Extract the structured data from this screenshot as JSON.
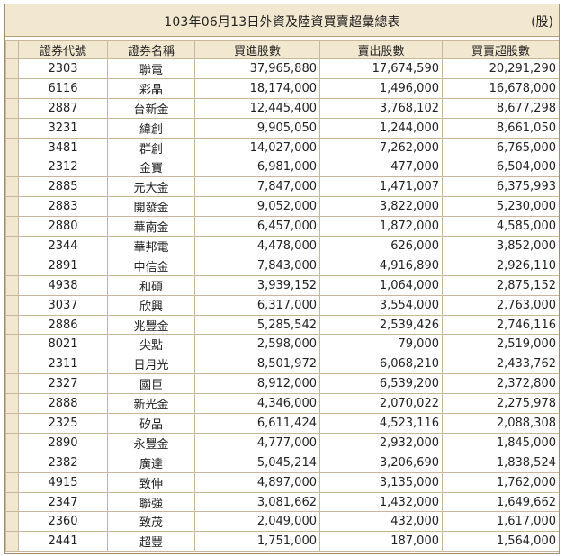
{
  "title": "103年06月13日外資及陸資買賣超彙總表",
  "unit": "(股)",
  "headers": [
    "證券代號",
    "證券名稱",
    "買進股數",
    "賣出股數",
    "買賣超股數"
  ],
  "rows": [
    {
      "code": "2303",
      "name": "聯電",
      "buy": "37,965,880",
      "sell": "17,674,590",
      "net": "20,291,290"
    },
    {
      "code": "6116",
      "name": "彩晶",
      "buy": "18,174,000",
      "sell": "1,496,000",
      "net": "16,678,000"
    },
    {
      "code": "2887",
      "name": "台新金",
      "buy": "12,445,400",
      "sell": "3,768,102",
      "net": "8,677,298"
    },
    {
      "code": "3231",
      "name": "緯創",
      "buy": "9,905,050",
      "sell": "1,244,000",
      "net": "8,661,050"
    },
    {
      "code": "3481",
      "name": "群創",
      "buy": "14,027,000",
      "sell": "7,262,000",
      "net": "6,765,000"
    },
    {
      "code": "2312",
      "name": "金寶",
      "buy": "6,981,000",
      "sell": "477,000",
      "net": "6,504,000"
    },
    {
      "code": "2885",
      "name": "元大金",
      "buy": "7,847,000",
      "sell": "1,471,007",
      "net": "6,375,993"
    },
    {
      "code": "2883",
      "name": "開發金",
      "buy": "9,052,000",
      "sell": "3,822,000",
      "net": "5,230,000"
    },
    {
      "code": "2880",
      "name": "華南金",
      "buy": "6,457,000",
      "sell": "1,872,000",
      "net": "4,585,000"
    },
    {
      "code": "2344",
      "name": "華邦電",
      "buy": "4,478,000",
      "sell": "626,000",
      "net": "3,852,000"
    },
    {
      "code": "2891",
      "name": "中信金",
      "buy": "7,843,000",
      "sell": "4,916,890",
      "net": "2,926,110"
    },
    {
      "code": "4938",
      "name": "和碩",
      "buy": "3,939,152",
      "sell": "1,064,000",
      "net": "2,875,152"
    },
    {
      "code": "3037",
      "name": "欣興",
      "buy": "6,317,000",
      "sell": "3,554,000",
      "net": "2,763,000"
    },
    {
      "code": "2886",
      "name": "兆豐金",
      "buy": "5,285,542",
      "sell": "2,539,426",
      "net": "2,746,116"
    },
    {
      "code": "8021",
      "name": "尖點",
      "buy": "2,598,000",
      "sell": "79,000",
      "net": "2,519,000"
    },
    {
      "code": "2311",
      "name": "日月光",
      "buy": "8,501,972",
      "sell": "6,068,210",
      "net": "2,433,762"
    },
    {
      "code": "2327",
      "name": "國巨",
      "buy": "8,912,000",
      "sell": "6,539,200",
      "net": "2,372,800"
    },
    {
      "code": "2888",
      "name": "新光金",
      "buy": "4,346,000",
      "sell": "2,070,022",
      "net": "2,275,978"
    },
    {
      "code": "2325",
      "name": "矽品",
      "buy": "6,611,424",
      "sell": "4,523,116",
      "net": "2,088,308"
    },
    {
      "code": "2890",
      "name": "永豐金",
      "buy": "4,777,000",
      "sell": "2,932,000",
      "net": "1,845,000"
    },
    {
      "code": "2382",
      "name": "廣達",
      "buy": "5,045,214",
      "sell": "3,206,690",
      "net": "1,838,524"
    },
    {
      "code": "4915",
      "name": "致伸",
      "buy": "4,897,000",
      "sell": "3,135,000",
      "net": "1,762,000"
    },
    {
      "code": "2347",
      "name": "聯強",
      "buy": "3,081,662",
      "sell": "1,432,000",
      "net": "1,649,662"
    },
    {
      "code": "2360",
      "name": "致茂",
      "buy": "2,049,000",
      "sell": "432,000",
      "net": "1,617,000"
    },
    {
      "code": "2441",
      "name": "超豐",
      "buy": "1,751,000",
      "sell": "187,000",
      "net": "1,564,000"
    }
  ]
}
